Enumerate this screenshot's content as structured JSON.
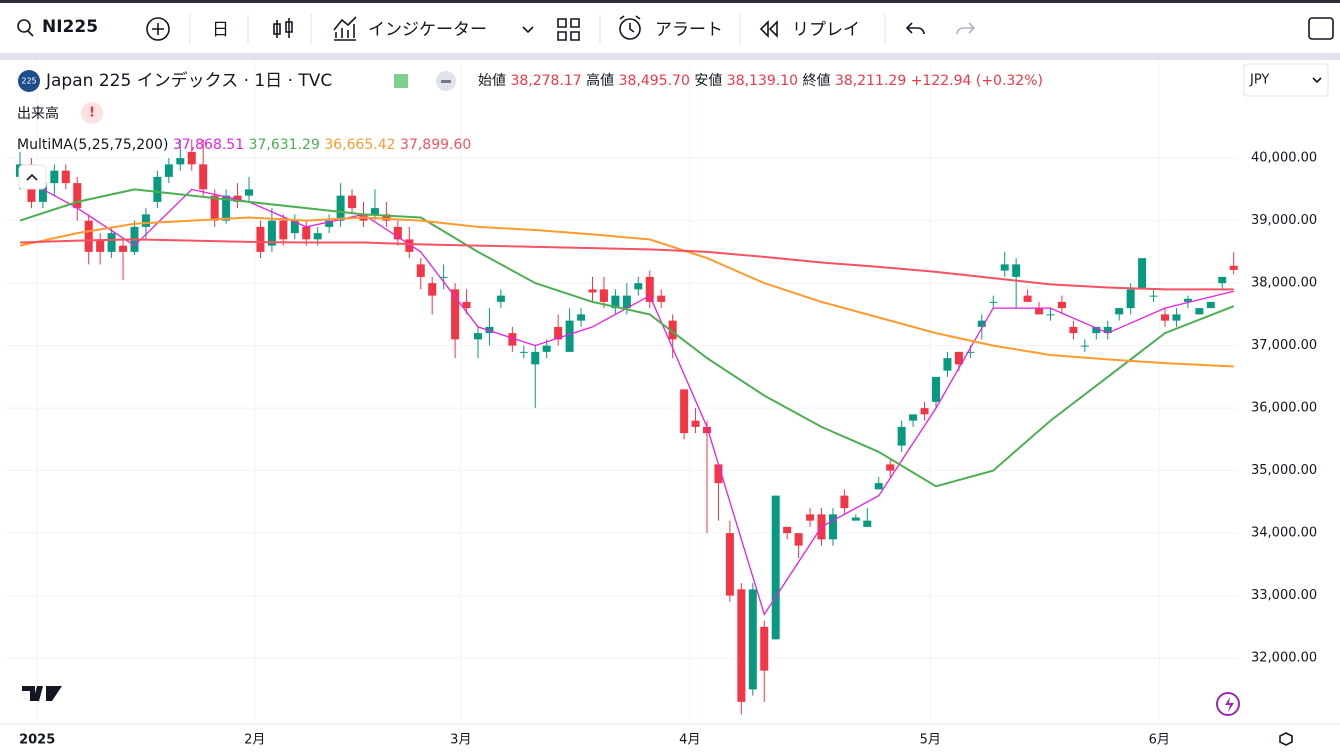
{
  "toolbar": {
    "symbol": "NI225",
    "interval": "日",
    "indicators": "インジケーター",
    "alert": "アラート",
    "replay": "リプレイ"
  },
  "legend": {
    "badge": "225",
    "title": "Japan 225 インデックス · 1日 · TVC",
    "fields": [
      {
        "label": "始値",
        "value": "38,278.17"
      },
      {
        "label": "高値",
        "value": "38,495.70"
      },
      {
        "label": "安値",
        "value": "38,139.10"
      },
      {
        "label": "終値",
        "value": "38,211.29"
      }
    ],
    "change": "+122.94 (+0.32%)",
    "volume": "出来高",
    "ma_name": "MultiMA(5,25,75,200)",
    "ma_values": [
      "37,868.51",
      "37,631.29",
      "36,665.42",
      "37,899.60"
    ]
  },
  "currency": "JPY",
  "chart_data": {
    "type": "candlestick",
    "up_color": "#089981",
    "down_color": "#f23645",
    "ohlc": [
      [
        39700,
        40100,
        39500,
        39900
      ],
      [
        39900,
        40000,
        39200,
        39300
      ],
      [
        39300,
        39700,
        39200,
        39600
      ],
      [
        39600,
        39900,
        39400,
        39800
      ],
      [
        39800,
        39900,
        39500,
        39600
      ],
      [
        39600,
        39700,
        39000,
        39200
      ],
      [
        39000,
        39100,
        38300,
        38500
      ],
      [
        38700,
        38800,
        38300,
        38500
      ],
      [
        38500,
        38900,
        38400,
        38800
      ],
      [
        38600,
        38700,
        38050,
        38500
      ],
      [
        38500,
        39000,
        38450,
        38900
      ],
      [
        38900,
        39200,
        38700,
        39100
      ],
      [
        39300,
        39800,
        39200,
        39700
      ],
      [
        39700,
        40000,
        39600,
        39900
      ],
      [
        39900,
        40300,
        39800,
        40000
      ],
      [
        40100,
        40300,
        39800,
        39900
      ],
      [
        39900,
        40300,
        39400,
        39500
      ],
      [
        39400,
        39500,
        38900,
        39000
      ],
      [
        39000,
        39500,
        38950,
        39400
      ],
      [
        39400,
        39600,
        39200,
        39300
      ],
      [
        39400,
        39700,
        39300,
        39500
      ],
      [
        38900,
        39000,
        38400,
        38500
      ],
      [
        38600,
        39200,
        38500,
        39000
      ],
      [
        39000,
        39100,
        38600,
        38700
      ],
      [
        38800,
        39100,
        38700,
        39000
      ],
      [
        38900,
        39000,
        38600,
        38700
      ],
      [
        38700,
        38900,
        38600,
        38800
      ],
      [
        38900,
        39100,
        38800,
        39000
      ],
      [
        39000,
        39600,
        38900,
        39400
      ],
      [
        39400,
        39500,
        39100,
        39200
      ],
      [
        39100,
        39300,
        38900,
        39000
      ],
      [
        39100,
        39500,
        39000,
        39200
      ],
      [
        39100,
        39300,
        38900,
        39000
      ],
      [
        38900,
        39000,
        38600,
        38700
      ],
      [
        38700,
        38900,
        38400,
        38500
      ],
      [
        38300,
        38400,
        37900,
        38100
      ],
      [
        38000,
        38100,
        37500,
        37800
      ],
      [
        38100,
        38300,
        37900,
        38100
      ],
      [
        37900,
        38000,
        36800,
        37100
      ],
      [
        37700,
        37900,
        37500,
        37600
      ],
      [
        37100,
        37300,
        36800,
        37200
      ],
      [
        37200,
        37600,
        37000,
        37300
      ],
      [
        37700,
        37900,
        37600,
        37800
      ],
      [
        37200,
        37300,
        36900,
        37000
      ],
      [
        36900,
        37000,
        36800,
        36900
      ],
      [
        36700,
        37000,
        36000,
        36900
      ],
      [
        36900,
        37100,
        36800,
        37000
      ],
      [
        37300,
        37500,
        37000,
        37100
      ],
      [
        36900,
        37600,
        36900,
        37400
      ],
      [
        37400,
        37600,
        37300,
        37500
      ],
      [
        37900,
        38100,
        37700,
        37850
      ],
      [
        37900,
        38100,
        37600,
        37700
      ],
      [
        37600,
        37900,
        37500,
        37800
      ],
      [
        37600,
        38000,
        37500,
        37800
      ],
      [
        37900,
        38100,
        37800,
        38000
      ],
      [
        38100,
        38200,
        37600,
        37700
      ],
      [
        37800,
        37900,
        37600,
        37700
      ],
      [
        37400,
        37500,
        36800,
        37100
      ],
      [
        36300,
        36300,
        35500,
        35600
      ],
      [
        35800,
        36000,
        35600,
        35700
      ],
      [
        35700,
        35800,
        34000,
        35600
      ],
      [
        35100,
        35100,
        34200,
        34800
      ],
      [
        34000,
        34200,
        32900,
        33000
      ],
      [
        33100,
        33200,
        31100,
        31300
      ],
      [
        31500,
        33200,
        31400,
        33100
      ],
      [
        32500,
        32600,
        31300,
        31800
      ],
      [
        32300,
        34600,
        32300,
        34600
      ],
      [
        34100,
        34100,
        33900,
        34000
      ],
      [
        34000,
        34000,
        33600,
        33800
      ],
      [
        34300,
        34400,
        34100,
        34200
      ],
      [
        34300,
        34400,
        33800,
        33900
      ],
      [
        33900,
        34400,
        33800,
        34300
      ],
      [
        34600,
        34700,
        34300,
        34400
      ],
      [
        34200,
        34300,
        34200,
        34250
      ],
      [
        34100,
        34400,
        34100,
        34200
      ],
      [
        34700,
        34900,
        34700,
        34800
      ],
      [
        35100,
        35200,
        34900,
        35000
      ],
      [
        35400,
        35800,
        35300,
        35700
      ],
      [
        35800,
        35900,
        35700,
        35900
      ],
      [
        36000,
        36100,
        35800,
        35900
      ],
      [
        36100,
        36500,
        36000,
        36500
      ],
      [
        36600,
        36900,
        36500,
        36800
      ],
      [
        36900,
        36900,
        36600,
        36700
      ],
      [
        36900,
        37000,
        36800,
        36900
      ],
      [
        37300,
        37500,
        37100,
        37400
      ],
      [
        37700,
        37800,
        37600,
        37700
      ],
      [
        38200,
        38500,
        38100,
        38300
      ],
      [
        38100,
        38400,
        37600,
        38300
      ],
      [
        37800,
        37900,
        37700,
        37700
      ],
      [
        37600,
        37700,
        37500,
        37500
      ],
      [
        37500,
        37600,
        37400,
        37500
      ],
      [
        37700,
        37800,
        37500,
        37600
      ],
      [
        37300,
        37400,
        37100,
        37200
      ],
      [
        37000,
        37100,
        36900,
        37000
      ],
      [
        37200,
        37300,
        37100,
        37300
      ],
      [
        37200,
        37400,
        37100,
        37300
      ],
      [
        37500,
        37600,
        37400,
        37600
      ],
      [
        37600,
        38000,
        37500,
        37900
      ],
      [
        37900,
        38400,
        37900,
        38400
      ],
      [
        37800,
        37900,
        37700,
        37800
      ],
      [
        37500,
        37600,
        37300,
        37400
      ],
      [
        37400,
        37600,
        37300,
        37500
      ],
      [
        37700,
        37800,
        37600,
        37750
      ],
      [
        37500,
        37600,
        37500,
        37600
      ],
      [
        37600,
        37700,
        37600,
        37700
      ],
      [
        38000,
        38100,
        37900,
        38100
      ],
      [
        38278.17,
        38495.7,
        38139.1,
        38211.29
      ]
    ],
    "series": [
      {
        "color": "#e91ee3",
        "x": [
          0,
          5,
          10,
          15,
          20,
          25,
          30,
          35,
          40,
          45,
          50,
          55,
          60,
          65,
          70,
          75,
          80,
          85,
          90,
          95,
          100,
          106
        ],
        "values": [
          39700,
          39200,
          38600,
          39500,
          39300,
          38900,
          39100,
          38500,
          37300,
          37000,
          37300,
          37800,
          35700,
          32700,
          34100,
          34600,
          36000,
          37600,
          37600,
          37200,
          37600,
          37868.51
        ]
      },
      {
        "color": "#4caf50",
        "x": [
          0,
          5,
          10,
          15,
          20,
          25,
          30,
          35,
          40,
          45,
          50,
          55,
          60,
          65,
          70,
          75,
          80,
          85,
          90,
          95,
          100,
          106
        ],
        "values": [
          39000,
          39300,
          39500,
          39400,
          39300,
          39200,
          39100,
          39050,
          38500,
          38000,
          37700,
          37500,
          36800,
          36200,
          35700,
          35300,
          34750,
          35000,
          35800,
          36500,
          37200,
          37631.29
        ]
      },
      {
        "color": "#ff9a2e",
        "x": [
          0,
          5,
          10,
          15,
          20,
          25,
          30,
          35,
          40,
          45,
          50,
          55,
          60,
          65,
          70,
          75,
          80,
          85,
          90,
          95,
          100,
          106
        ],
        "values": [
          38600,
          38800,
          38950,
          39000,
          39050,
          39000,
          39050,
          39000,
          38900,
          38850,
          38780,
          38700,
          38400,
          38000,
          37700,
          37450,
          37200,
          37000,
          36850,
          36780,
          36720,
          36665.42
        ]
      },
      {
        "color": "#f7525f",
        "x": [
          0,
          5,
          10,
          15,
          20,
          25,
          30,
          35,
          40,
          45,
          50,
          55,
          60,
          65,
          70,
          75,
          80,
          85,
          90,
          95,
          100,
          106
        ],
        "values": [
          38650,
          38680,
          38700,
          38680,
          38660,
          38650,
          38650,
          38620,
          38600,
          38580,
          38560,
          38540,
          38500,
          38420,
          38330,
          38260,
          38180,
          38080,
          37980,
          37930,
          37900,
          37899.6
        ]
      }
    ],
    "ylim": [
      31010,
      41570
    ],
    "yticks": [
      {
        "value": 32000,
        "label": "32,000.00"
      },
      {
        "value": 33000,
        "label": "33,000.00"
      },
      {
        "value": 34000,
        "label": "34,000.00"
      },
      {
        "value": 35000,
        "label": "35,000.00"
      },
      {
        "value": 36000,
        "label": "36,000.00"
      },
      {
        "value": 37000,
        "label": "37,000.00"
      },
      {
        "value": 38000,
        "label": "38,000.00"
      },
      {
        "value": 39000,
        "label": "39,000.00"
      },
      {
        "value": 40000,
        "label": "40,000.00"
      }
    ],
    "xticks": [
      {
        "value": 1.5,
        "label": "2025"
      },
      {
        "value": 20.5,
        "label": "2月"
      },
      {
        "value": 38.5,
        "label": "3月"
      },
      {
        "value": 58.5,
        "label": "4月"
      },
      {
        "value": 79.5,
        "label": "5月"
      },
      {
        "value": 99.5,
        "label": "6月"
      }
    ],
    "grid": true
  }
}
